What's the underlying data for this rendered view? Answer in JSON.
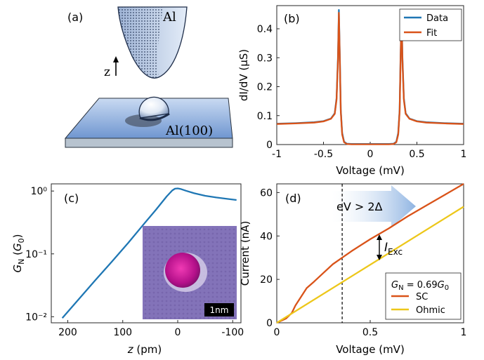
{
  "panels": {
    "a": {
      "label": "(a)",
      "tip_label": "Al",
      "surface_label": "Al(100)",
      "axis_label": "z"
    },
    "b": {
      "label": "(b)"
    },
    "c": {
      "label": "(c)",
      "inset_scalebar": "1nm"
    },
    "d": {
      "label": "(d)",
      "annotation_arrow": "eV > 2Δ",
      "annotation_current": "I",
      "annotation_current_sub": "Exc"
    }
  },
  "colors": {
    "blue": "#1f77b4",
    "orange": "#d95319",
    "yellow": "#edc71a",
    "tip_fill": "#c9d9ee",
    "surface_fill": "#8fb0de",
    "inset_bg": "#8572b8",
    "adatom": "#c0178f"
  },
  "chart_data": [
    {
      "panel": "b",
      "type": "line",
      "xlabel": "Voltage (mV)",
      "ylabel": "dI/dV (µS)",
      "xlim": [
        -1,
        1
      ],
      "ylim": [
        0,
        0.48
      ],
      "xticks": [
        -1,
        -0.5,
        0,
        0.5,
        1
      ],
      "xtick_labels": [
        "-1",
        "-0.5",
        "0",
        "0.5",
        "1"
      ],
      "yticks": [
        0,
        0.1,
        0.2,
        0.3,
        0.4
      ],
      "ytick_labels": [
        "0",
        "0.1",
        "0.2",
        "0.3",
        "0.4"
      ],
      "legend": "top-right",
      "series": [
        {
          "name": "Data",
          "color": "blue",
          "x": [
            -1,
            -0.8,
            -0.6,
            -0.5,
            -0.42,
            -0.38,
            -0.36,
            -0.345,
            -0.335,
            -0.325,
            -0.315,
            -0.3,
            -0.28,
            -0.25,
            -0.2,
            -0.1,
            0,
            0.1,
            0.2,
            0.25,
            0.28,
            0.3,
            0.315,
            0.325,
            0.335,
            0.345,
            0.36,
            0.38,
            0.42,
            0.5,
            0.6,
            0.8,
            1
          ],
          "y": [
            0.072,
            0.074,
            0.077,
            0.081,
            0.09,
            0.108,
            0.16,
            0.3,
            0.465,
            0.3,
            0.12,
            0.04,
            0.01,
            0.003,
            0.002,
            0.002,
            0.002,
            0.002,
            0.002,
            0.003,
            0.01,
            0.04,
            0.12,
            0.3,
            0.465,
            0.3,
            0.16,
            0.108,
            0.09,
            0.081,
            0.077,
            0.074,
            0.072
          ]
        },
        {
          "name": "Fit",
          "color": "orange",
          "x": [
            -1,
            -0.8,
            -0.6,
            -0.5,
            -0.42,
            -0.38,
            -0.36,
            -0.345,
            -0.335,
            -0.325,
            -0.315,
            -0.3,
            -0.28,
            -0.25,
            -0.2,
            -0.1,
            0,
            0.1,
            0.2,
            0.25,
            0.28,
            0.3,
            0.315,
            0.325,
            0.335,
            0.345,
            0.36,
            0.38,
            0.42,
            0.5,
            0.6,
            0.8,
            1
          ],
          "y": [
            0.071,
            0.073,
            0.076,
            0.08,
            0.089,
            0.106,
            0.155,
            0.29,
            0.455,
            0.29,
            0.115,
            0.035,
            0.008,
            0.002,
            0.001,
            0.001,
            0.001,
            0.001,
            0.001,
            0.002,
            0.008,
            0.035,
            0.115,
            0.29,
            0.455,
            0.29,
            0.155,
            0.106,
            0.089,
            0.08,
            0.076,
            0.073,
            0.071
          ]
        }
      ]
    },
    {
      "panel": "c",
      "type": "line",
      "xlabel": "z (pm)",
      "ylabel": "G_N (G_0)",
      "xlim": [
        230,
        -115
      ],
      "ylim": [
        0.008,
        1.3
      ],
      "yscale": "log",
      "xticks": [
        200,
        100,
        0,
        -100
      ],
      "xtick_labels": [
        "200",
        "100",
        "0",
        "-100"
      ],
      "ytick_labels": [
        "10⁻²",
        "10⁻¹",
        "10⁰"
      ],
      "series": [
        {
          "color": "blue",
          "x": [
            210,
            180,
            150,
            120,
            90,
            60,
            40,
            20,
            10,
            5,
            0,
            -5,
            -15,
            -30,
            -50,
            -70,
            -90,
            -107
          ],
          "y": [
            0.0095,
            0.019,
            0.038,
            0.075,
            0.15,
            0.31,
            0.5,
            0.82,
            1.02,
            1.09,
            1.1,
            1.08,
            1.01,
            0.92,
            0.84,
            0.79,
            0.75,
            0.72
          ]
        }
      ]
    },
    {
      "panel": "d",
      "type": "line",
      "xlabel": "Voltage (mV)",
      "ylabel": "Current (nA)",
      "xlim": [
        0,
        1
      ],
      "ylim": [
        0,
        64
      ],
      "xticks": [
        0,
        0.5,
        1
      ],
      "xtick_labels": [
        "0",
        "0.5",
        "1"
      ],
      "yticks": [
        0,
        20,
        40,
        60
      ],
      "ytick_labels": [
        "0",
        "20",
        "40",
        "60"
      ],
      "vline_x": 0.35,
      "legend": "bottom-right",
      "legend_title": "G_N = 0.69G_0",
      "series": [
        {
          "name": "SC",
          "color": "orange",
          "x": [
            0,
            0.05,
            0.08,
            0.1,
            0.13,
            0.16,
            0.2,
            0.25,
            0.3,
            0.35,
            0.4,
            0.5,
            0.6,
            0.7,
            0.8,
            0.9,
            1
          ],
          "y": [
            0,
            2,
            4.5,
            8,
            12,
            16,
            19,
            23,
            27,
            30,
            33,
            38.5,
            43.5,
            49,
            54,
            59,
            64
          ]
        },
        {
          "name": "Ohmic",
          "color": "yellow",
          "x": [
            0,
            1
          ],
          "y": [
            0,
            53.5
          ]
        }
      ]
    }
  ]
}
